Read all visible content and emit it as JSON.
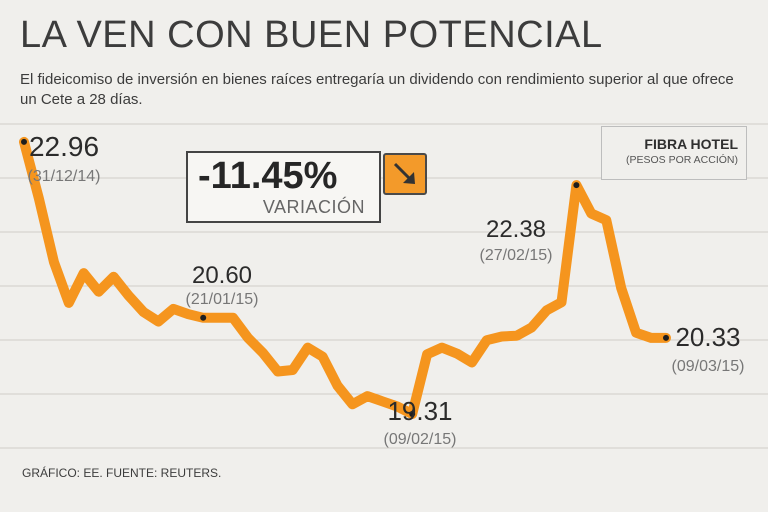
{
  "title": "LA VEN CON BUEN POTENCIAL",
  "subtitle": "El fideicomiso de inversión en bienes raíces entregaría un dividendo con rendimiento superior al que ofrece un Cete a 28 días.",
  "legend": {
    "name": "FIBRA HOTEL",
    "unit": "(PESOS POR ACCIÓN)"
  },
  "variation": {
    "percent": "-11.45%",
    "label": "VARIACIÓN"
  },
  "footer": "GRÁFICO: EE. FUENTE: REUTERS.",
  "colors": {
    "line": "#f5951e",
    "background": "#f0efec",
    "accent": "#f39a2a"
  },
  "chart_data": {
    "type": "line",
    "title": "FIBRA HOTEL (PESOS POR ACCIÓN)",
    "xlabel": "",
    "ylabel": "",
    "ylim": [
      18.8,
      23.2
    ],
    "series": [
      {
        "name": "FIBRA HOTEL",
        "values": [
          22.96,
          22.2,
          21.35,
          20.8,
          21.2,
          20.95,
          21.15,
          20.9,
          20.68,
          20.55,
          20.72,
          20.65,
          20.6,
          20.6,
          20.6,
          20.33,
          20.13,
          19.88,
          19.9,
          20.2,
          20.08,
          19.69,
          19.44,
          19.55,
          19.48,
          19.41,
          19.31,
          20.11,
          20.2,
          20.12,
          20.0,
          20.3,
          20.35,
          20.36,
          20.47,
          20.7,
          20.81,
          22.38,
          22.0,
          21.91,
          21.0,
          20.4,
          20.33,
          20.33
        ]
      }
    ],
    "annotations": [
      {
        "index": 0,
        "value": "22.96",
        "date": "(31/12/14)"
      },
      {
        "index": 12,
        "value": "20.60",
        "date": "(21/01/15)"
      },
      {
        "index": 26,
        "value": "19.31",
        "date": "(09/02/15)"
      },
      {
        "index": 37,
        "value": "22.38",
        "date": "(27/02/15)"
      },
      {
        "index": 43,
        "value": "20.33",
        "date": "(09/03/15)"
      }
    ]
  }
}
